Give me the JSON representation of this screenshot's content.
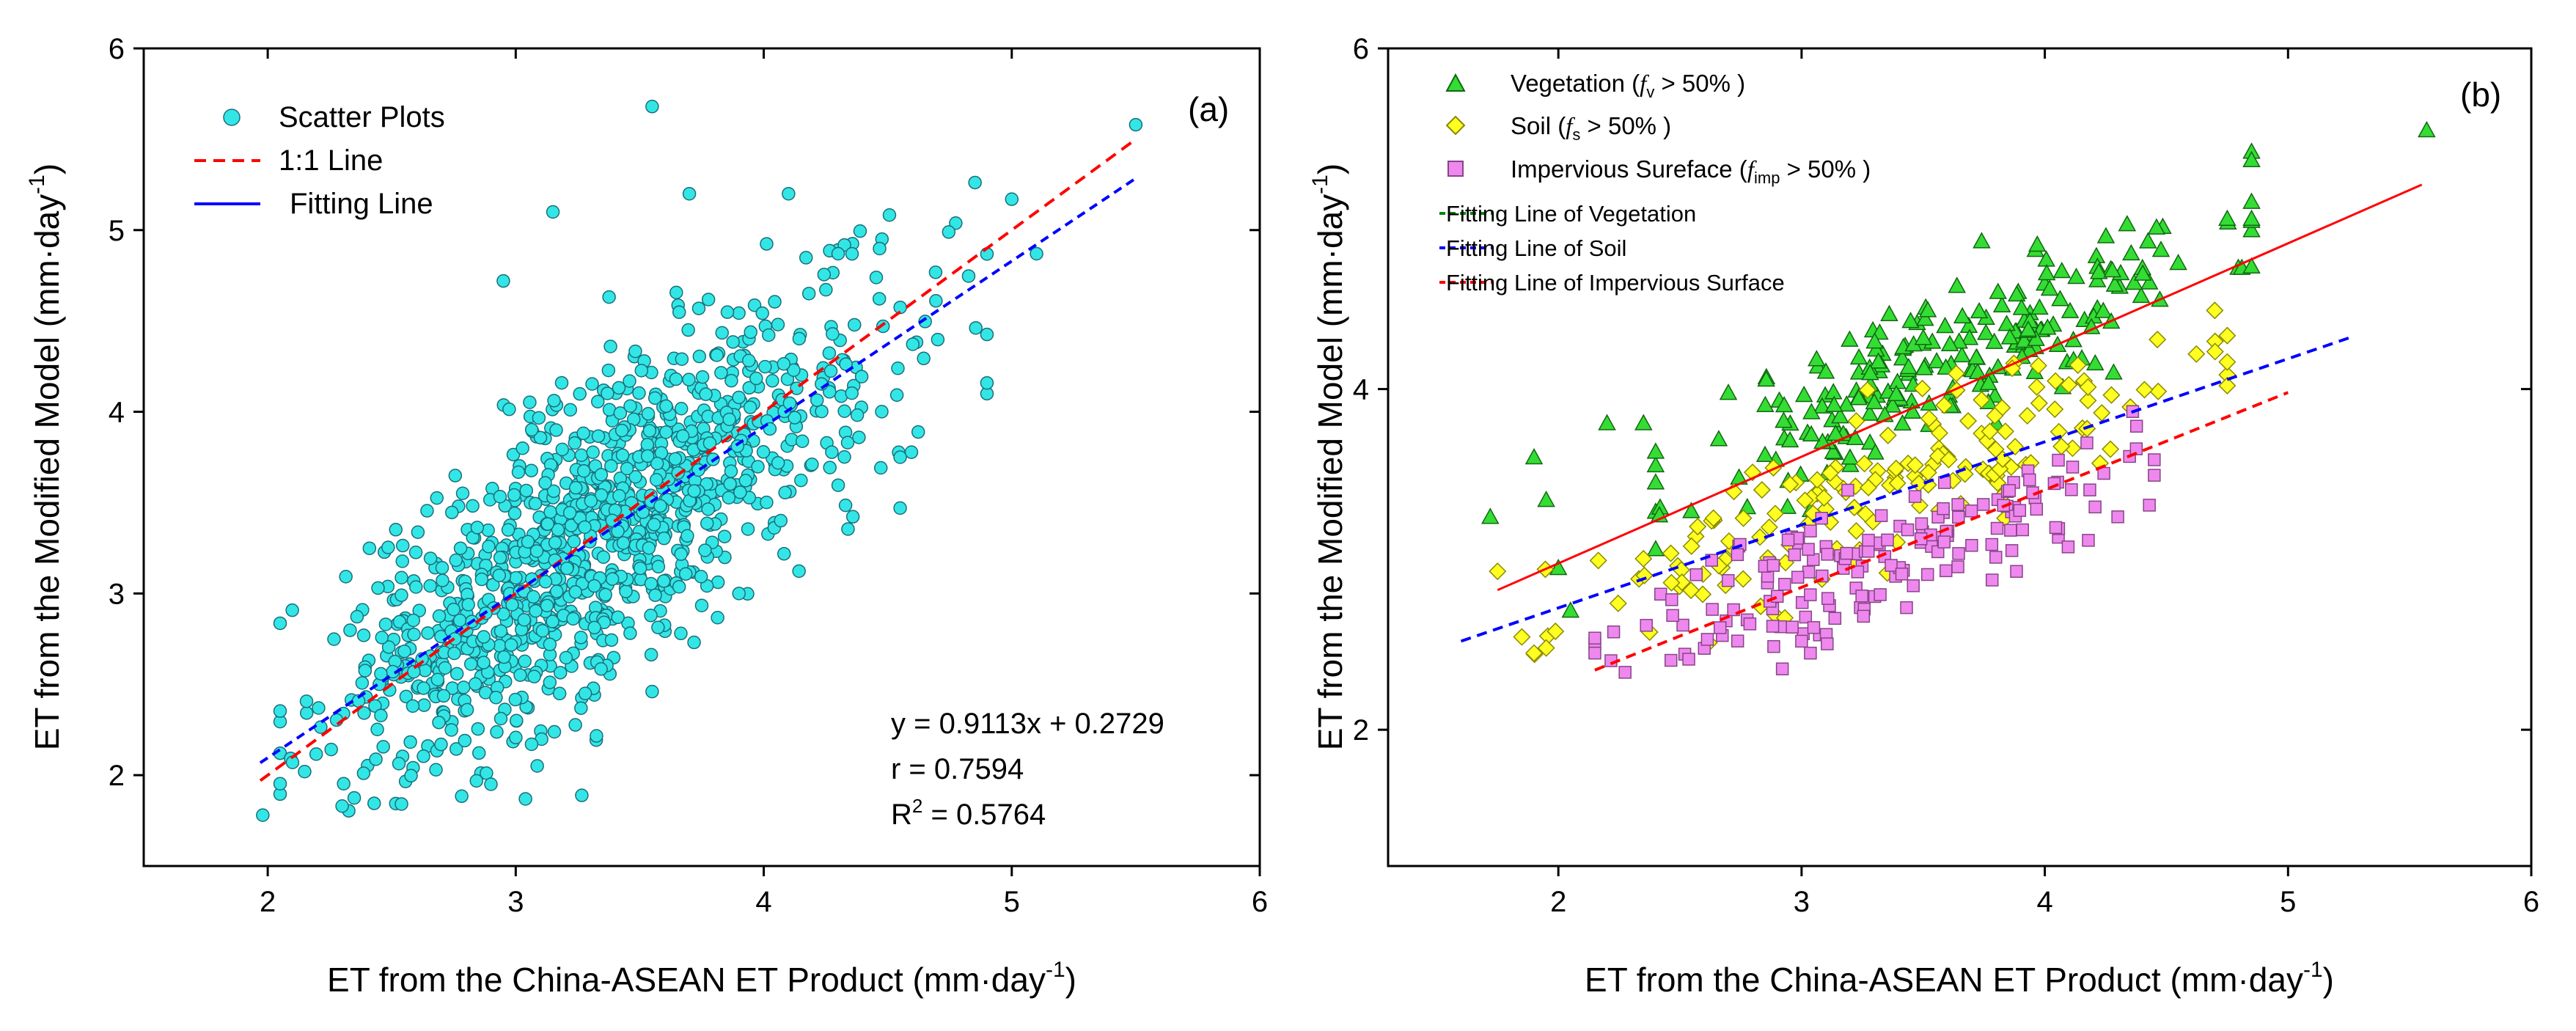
{
  "colors": {
    "scatter_fill": "#33e6e6",
    "scatter_edge": "#1a6f7a",
    "line_11": "#ff0000",
    "fit_line": "#0000ff",
    "vegetation_fill": "#33dd33",
    "vegetation_edge": "#116611",
    "soil_fill": "#ffff22",
    "soil_edge": "#8a8a00",
    "impervious_fill": "#ee88ee",
    "impervious_edge": "#884488",
    "fit_vegetation": "#ff0000",
    "fit_soil": "#0000ff",
    "fit_impervious": "#ff0000"
  },
  "chart_data": [
    {
      "panel": "(a)",
      "type": "scatter",
      "xlabel": "ET from the China-ASEAN ET Product (mm·day",
      "ylabel": "ET from the Modified Model (mm·day",
      "label_superscript": "-1",
      "label_close": ")",
      "xlim": [
        1.5,
        6
      ],
      "ylim": [
        1.5,
        6
      ],
      "xticks": [
        "2",
        "3",
        "4",
        "5",
        "6"
      ],
      "yticks": [
        "2",
        "3",
        "4",
        "5",
        "6"
      ],
      "xtick_values": [
        2,
        3,
        4,
        5,
        6
      ],
      "ytick_values": [
        2,
        3,
        4,
        5,
        6
      ],
      "legend": {
        "position": "top-left",
        "scatter": "Scatter Plots",
        "line_11": "1:1 Line",
        "fit": "Fitting Line"
      },
      "stats": {
        "equation": "y = 0.9113x + 0.2729",
        "r": "r = 0.7594",
        "r2_prefix": "R",
        "r2_sup": "2",
        "r2_value": " = 0.5764"
      },
      "line_11": {
        "x": [
          1.97,
          5.5
        ],
        "y": [
          1.97,
          5.5
        ]
      },
      "fit_line": {
        "slope": 0.9113,
        "intercept": 0.2729,
        "x": [
          1.97,
          5.5
        ]
      },
      "generated_points": {
        "count": 1150,
        "x_mean": 3.35,
        "x_sd": 0.55,
        "residual_sd": 0.42,
        "seed": 7
      },
      "outliers": {
        "x": [
          3.55,
          3.7,
          4.1,
          3.15,
          2.95,
          5.5,
          5.0,
          5.1,
          4.55,
          1.98,
          2.1,
          2.3,
          3.55,
          4.3,
          4.55,
          3.9,
          2.9
        ],
        "y": [
          5.68,
          5.2,
          5.2,
          5.1,
          4.72,
          5.58,
          5.17,
          4.87,
          3.47,
          1.78,
          2.07,
          1.83,
          2.46,
          4.87,
          3.75,
          3.0,
          1.95
        ]
      }
    },
    {
      "panel": "(b)",
      "type": "scatter",
      "xlabel": "ET from the China-ASEAN ET Product (mm·day",
      "ylabel": "ET from the Modified Model (mm·day",
      "label_superscript": "-1",
      "label_close": ")",
      "xlim": [
        1.3,
        6
      ],
      "ylim": [
        1.2,
        6
      ],
      "xticks": [
        "2",
        "3",
        "4",
        "5",
        "6"
      ],
      "yticks": [
        "2",
        "4",
        "6"
      ],
      "xtick_values": [
        2,
        3,
        4,
        5,
        6
      ],
      "ytick_values": [
        2,
        4,
        6
      ],
      "legend": {
        "position": "top-left",
        "vegetation": "Vegetation (",
        "vegetation_f": "f",
        "vegetation_sub": "v",
        "vegetation_cond": " > 50% )",
        "soil": "Soil (",
        "soil_f": "f",
        "soil_sub": "s",
        "soil_cond": " > 50% )",
        "impervious": "Impervious Sureface (",
        "impervious_f": "f",
        "impervious_sub": "imp",
        "impervious_cond": " > 50% )",
        "fit_vegetation": "Fitting Line of Vegetation",
        "fit_soil": "Fitting Line of Soil",
        "fit_impervious": "Fitting Line of Impervious Surface"
      },
      "fit_lines": {
        "vegetation": {
          "x": [
            1.75,
            5.55
          ],
          "y": [
            2.82,
            5.2
          ]
        },
        "soil": {
          "x": [
            1.6,
            5.25
          ],
          "y": [
            2.52,
            4.3
          ]
        },
        "impervious": {
          "x": [
            2.15,
            5.0
          ],
          "y": [
            2.35,
            3.98
          ]
        }
      },
      "series": [
        {
          "name": "vegetation",
          "count": 230,
          "x_range": [
            2.4,
            4.85
          ],
          "slope": 0.62,
          "intercept": 1.95,
          "residual_sd": 0.22,
          "seed": 11,
          "extra_x": [
            1.72,
            1.9,
            1.95,
            2.0,
            2.05,
            2.2,
            2.35,
            5.57,
            4.85,
            4.85,
            4.75
          ],
          "extra_y": [
            3.25,
            3.6,
            3.35,
            2.95,
            2.7,
            3.8,
            3.8,
            5.52,
            5.1,
            5.0,
            5.0
          ]
        },
        {
          "name": "soil",
          "count": 170,
          "x_range": [
            1.85,
            4.75
          ],
          "slope": 0.55,
          "intercept": 1.58,
          "residual_sd": 0.2,
          "seed": 23,
          "extra_x": [
            1.75,
            1.9,
            1.95,
            4.7,
            4.75,
            4.7
          ],
          "extra_y": [
            2.93,
            2.45,
            2.48,
            4.28,
            4.02,
            4.22
          ]
        },
        {
          "name": "impervious",
          "count": 170,
          "x_range": [
            2.15,
            4.45
          ],
          "slope": 0.5,
          "intercept": 1.35,
          "residual_sd": 0.19,
          "seed": 37,
          "extra_x": [
            2.15,
            3.0,
            3.05,
            4.3
          ],
          "extra_y": [
            2.45,
            2.52,
            2.6,
            3.25
          ]
        }
      ]
    }
  ]
}
